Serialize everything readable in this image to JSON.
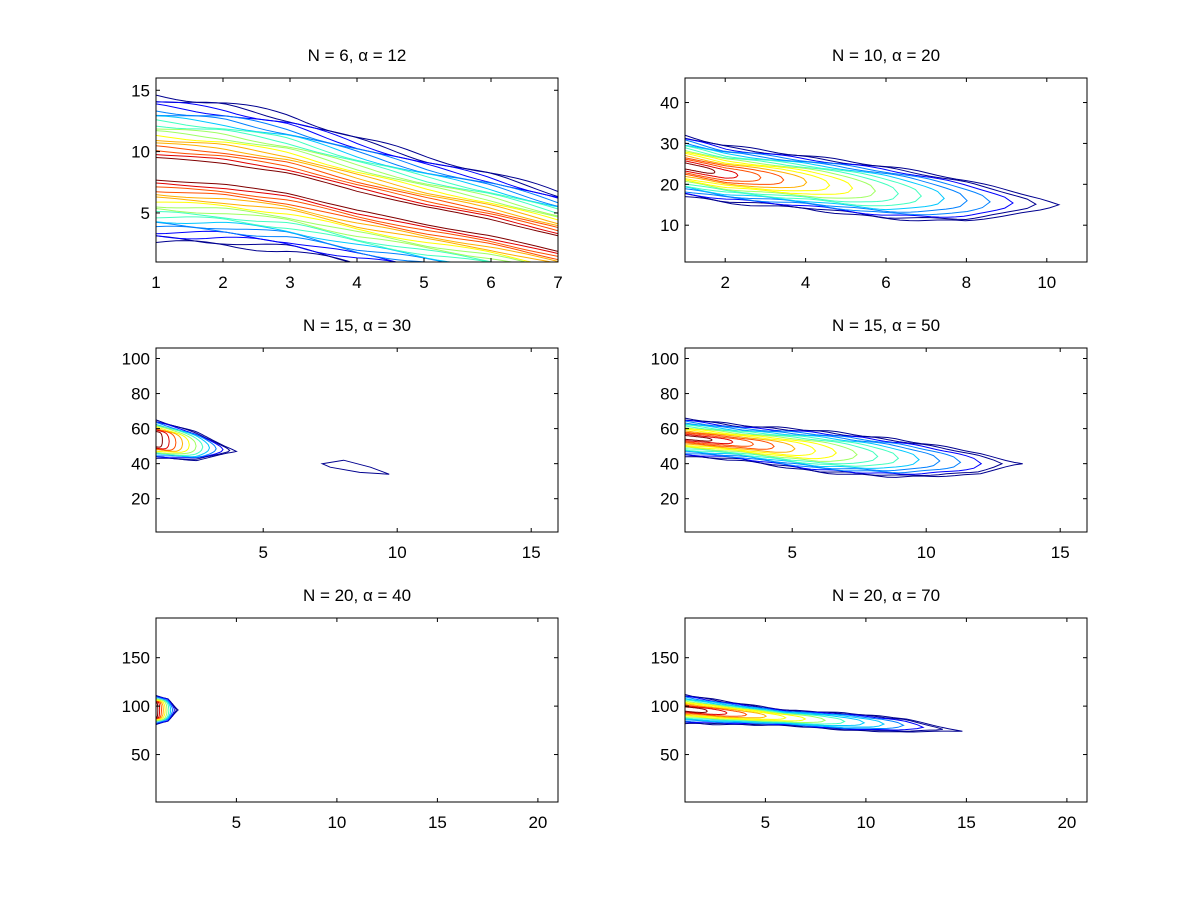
{
  "figure": {
    "background": "#ffffff",
    "colormap": [
      "#00008f",
      "#0000ff",
      "#0080ff",
      "#00c8ff",
      "#40ffbf",
      "#9fff60",
      "#ffff00",
      "#ffb000",
      "#ff5000",
      "#e00000",
      "#800000"
    ]
  },
  "chart_data": [
    {
      "type": "contour",
      "title": "N = 6, α = 12",
      "xlim": [
        1,
        7
      ],
      "ylim": [
        1,
        16
      ],
      "xticks": [
        1,
        2,
        3,
        4,
        5,
        6,
        7
      ],
      "yticks": [
        5,
        10,
        15
      ],
      "grid": false,
      "ridge": [
        [
          1,
          8.6
        ],
        [
          2,
          8.2
        ],
        [
          3,
          7.4
        ],
        [
          4,
          6.0
        ],
        [
          5,
          4.8
        ],
        [
          6,
          3.8
        ],
        [
          7,
          2.5
        ]
      ],
      "widths": [
        6.0,
        5.8,
        5.5,
        5.2,
        4.8,
        4.5,
        4.2
      ],
      "levels": 18,
      "level_spread": 0.85,
      "shape": "band"
    },
    {
      "type": "contour",
      "title": "N = 10, α = 20",
      "xlim": [
        1,
        11
      ],
      "ylim": [
        1,
        46
      ],
      "xticks": [
        2,
        4,
        6,
        8,
        10
      ],
      "yticks": [
        10,
        20,
        30,
        40
      ],
      "grid": false,
      "ridge": [
        [
          1,
          24.5
        ],
        [
          2,
          22.5
        ],
        [
          4,
          20.5
        ],
        [
          6,
          18
        ],
        [
          8,
          16
        ],
        [
          10,
          15
        ],
        [
          10.3,
          15
        ]
      ],
      "widths": [
        7.5,
        7.0,
        6.5,
        6.5,
        5.5,
        2.5,
        0.5
      ],
      "levels": 16,
      "level_spread": 0.9,
      "shape": "tail"
    },
    {
      "type": "contour",
      "title": "N = 15, α = 30",
      "xlim": [
        1,
        16
      ],
      "ylim": [
        1,
        106
      ],
      "xticks": [
        5,
        10,
        15
      ],
      "yticks": [
        20,
        40,
        60,
        80,
        100
      ],
      "grid": false,
      "ridge": [
        [
          1,
          54
        ],
        [
          2.5,
          50
        ],
        [
          4,
          47
        ]
      ],
      "widths": [
        11,
        8,
        0.8
      ],
      "levels": 12,
      "level_spread": 0.6,
      "shape": "blob",
      "islands": [
        [
          [
            7.2,
            40
          ],
          [
            8.0,
            42
          ],
          [
            9.0,
            38
          ],
          [
            9.7,
            34
          ],
          [
            8.6,
            35
          ],
          [
            7.5,
            38
          ]
        ]
      ]
    },
    {
      "type": "contour",
      "title": "N = 15, α = 50",
      "xlim": [
        1,
        16
      ],
      "ylim": [
        1,
        106
      ],
      "xticks": [
        5,
        10,
        15
      ],
      "yticks": [
        20,
        40,
        60,
        80,
        100
      ],
      "grid": false,
      "ridge": [
        [
          1,
          55
        ],
        [
          3,
          52
        ],
        [
          6,
          47
        ],
        [
          9,
          43
        ],
        [
          12,
          40
        ],
        [
          13.6,
          40
        ]
      ],
      "widths": [
        11,
        10,
        12,
        11,
        8,
        0.5
      ],
      "levels": 16,
      "level_spread": 0.9,
      "shape": "tail"
    },
    {
      "type": "contour",
      "title": "N = 20, α = 40",
      "xlim": [
        1,
        21
      ],
      "ylim": [
        1,
        191
      ],
      "xticks": [
        5,
        10,
        15,
        20
      ],
      "yticks": [
        50,
        100,
        150
      ],
      "grid": false,
      "ridge": [
        [
          1,
          96
        ],
        [
          1.6,
          96
        ],
        [
          2.1,
          96
        ]
      ],
      "widths": [
        15,
        12,
        0.8
      ],
      "levels": 12,
      "level_spread": 0.5,
      "shape": "blob"
    },
    {
      "type": "contour",
      "title": "N = 20, α = 70",
      "xlim": [
        1,
        21
      ],
      "ylim": [
        1,
        191
      ],
      "xticks": [
        5,
        10,
        15,
        20
      ],
      "yticks": [
        50,
        100,
        150
      ],
      "grid": false,
      "ridge": [
        [
          1,
          97
        ],
        [
          3,
          93
        ],
        [
          6,
          88
        ],
        [
          9,
          84
        ],
        [
          12,
          80
        ],
        [
          14.8,
          74
        ]
      ],
      "widths": [
        15,
        12,
        8,
        9,
        8,
        0.6
      ],
      "levels": 14,
      "level_spread": 0.85,
      "shape": "tail"
    }
  ]
}
